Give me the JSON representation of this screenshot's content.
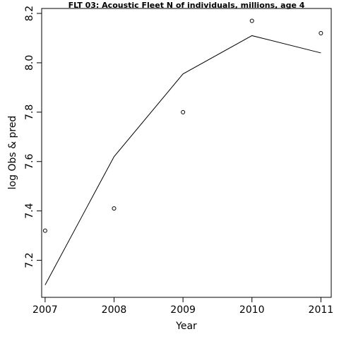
{
  "chart_data": {
    "type": "line",
    "title": "FLT 03: Acoustic Fleet  N of individuals, millions, age 4",
    "xlabel": "Year",
    "ylabel": "log Obs & pred",
    "x": [
      2007,
      2008,
      2009,
      2010,
      2011
    ],
    "xticks": [
      2007,
      2008,
      2009,
      2010,
      2011
    ],
    "yticks": [
      7.2,
      7.4,
      7.6,
      7.8,
      8.0,
      8.2
    ],
    "xlim": [
      2006.95,
      2011.15
    ],
    "ylim": [
      7.05,
      8.22
    ],
    "grid": false,
    "series": [
      {
        "style": "points",
        "values": [
          7.32,
          7.41,
          7.8,
          8.17,
          8.12
        ]
      },
      {
        "style": "line",
        "values": [
          7.1,
          7.62,
          7.955,
          8.11,
          8.04
        ]
      }
    ]
  }
}
